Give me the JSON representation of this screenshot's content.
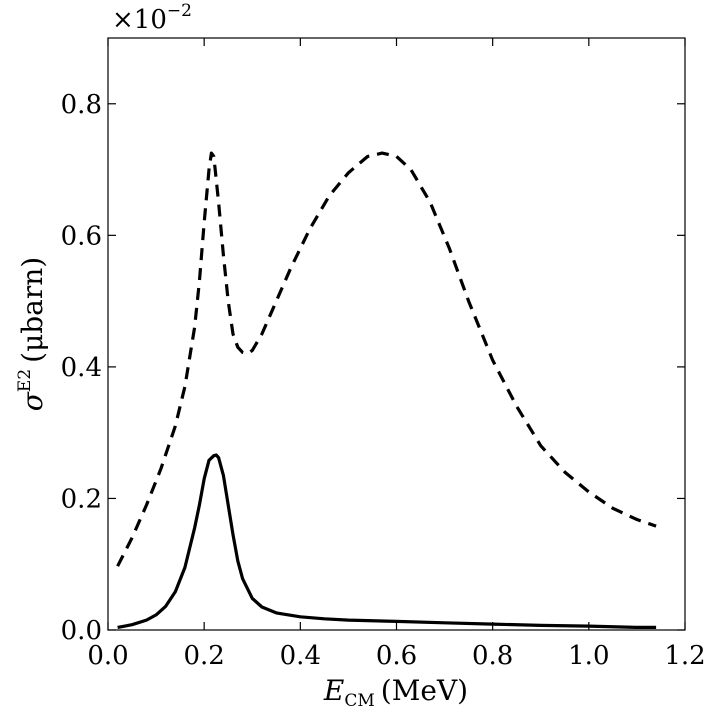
{
  "chart_data": {
    "type": "line",
    "xlabel": {
      "main": "E",
      "sub": "CM",
      "unit": "(MeV)"
    },
    "ylabel": {
      "main": "σ",
      "sup": "E2",
      "unit": "(μbarn)"
    },
    "y_multiplier": {
      "base": "×10",
      "exponent": "−2"
    },
    "xlim": [
      0.0,
      1.2
    ],
    "ylim": [
      0.0,
      0.9
    ],
    "x_ticks": [
      0.0,
      0.2,
      0.4,
      0.6,
      0.8,
      1.0,
      1.2
    ],
    "x_tick_labels": [
      "0.0",
      "0.2",
      "0.4",
      "0.6",
      "0.8",
      "1.0",
      "1.2"
    ],
    "y_ticks": [
      0.0,
      0.2,
      0.4,
      0.6,
      0.8
    ],
    "y_tick_labels": [
      "0.0",
      "0.2",
      "0.4",
      "0.6",
      "0.8"
    ],
    "grid": false,
    "series": [
      {
        "style": "dashed",
        "color": "#000000",
        "x": [
          0.02,
          0.05,
          0.08,
          0.11,
          0.14,
          0.16,
          0.18,
          0.19,
          0.2,
          0.21,
          0.215,
          0.22,
          0.23,
          0.24,
          0.25,
          0.26,
          0.27,
          0.28,
          0.29,
          0.3,
          0.32,
          0.35,
          0.38,
          0.42,
          0.46,
          0.5,
          0.54,
          0.57,
          0.6,
          0.63,
          0.67,
          0.71,
          0.75,
          0.8,
          0.85,
          0.9,
          0.95,
          1.0,
          1.05,
          1.1,
          1.14
        ],
        "y": [
          0.097,
          0.14,
          0.19,
          0.245,
          0.31,
          0.37,
          0.46,
          0.53,
          0.62,
          0.7,
          0.725,
          0.72,
          0.65,
          0.57,
          0.5,
          0.45,
          0.43,
          0.422,
          0.42,
          0.425,
          0.45,
          0.5,
          0.55,
          0.61,
          0.66,
          0.695,
          0.72,
          0.725,
          0.72,
          0.7,
          0.65,
          0.58,
          0.5,
          0.41,
          0.34,
          0.28,
          0.24,
          0.21,
          0.185,
          0.168,
          0.158
        ]
      },
      {
        "style": "solid",
        "color": "#000000",
        "x": [
          0.02,
          0.05,
          0.08,
          0.1,
          0.12,
          0.14,
          0.16,
          0.18,
          0.19,
          0.2,
          0.21,
          0.22,
          0.225,
          0.23,
          0.24,
          0.25,
          0.26,
          0.27,
          0.28,
          0.3,
          0.32,
          0.35,
          0.4,
          0.45,
          0.5,
          0.6,
          0.7,
          0.8,
          0.9,
          1.0,
          1.1,
          1.14
        ],
        "y": [
          0.004,
          0.008,
          0.015,
          0.023,
          0.036,
          0.058,
          0.095,
          0.155,
          0.19,
          0.23,
          0.258,
          0.265,
          0.266,
          0.262,
          0.235,
          0.19,
          0.145,
          0.105,
          0.078,
          0.048,
          0.035,
          0.026,
          0.02,
          0.017,
          0.015,
          0.013,
          0.011,
          0.009,
          0.007,
          0.006,
          0.004,
          0.004
        ]
      }
    ]
  }
}
